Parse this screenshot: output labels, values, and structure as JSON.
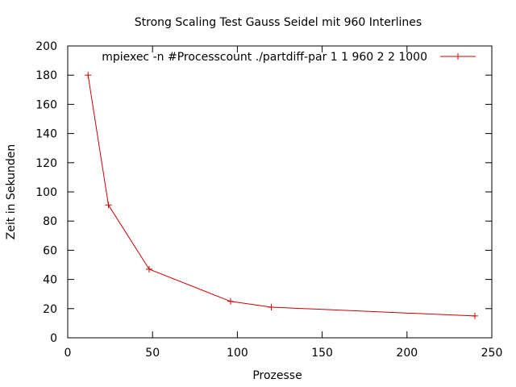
{
  "chart_data": {
    "type": "line",
    "title": "Strong Scaling Test Gauss Seidel mit 960 Interlines",
    "xlabel": "Prozesse",
    "ylabel": "Zeit in Sekunden",
    "xlim": [
      0,
      250
    ],
    "ylim": [
      0,
      200
    ],
    "xticks": [
      "0",
      "50",
      "100",
      "150",
      "200",
      "250"
    ],
    "yticks": [
      "0",
      "20",
      "40",
      "60",
      "80",
      "100",
      "120",
      "140",
      "160",
      "180",
      "200"
    ],
    "grid": false,
    "legend_position": "top-right",
    "series": [
      {
        "name": "mpiexec -n #Processcount ./partdiff-par 1 1 960 2 2 1000",
        "color": "#cc0000",
        "marker": "plus",
        "x": [
          12,
          24,
          48,
          96,
          120,
          240
        ],
        "y": [
          180,
          91,
          47,
          25,
          21,
          15
        ]
      }
    ]
  }
}
